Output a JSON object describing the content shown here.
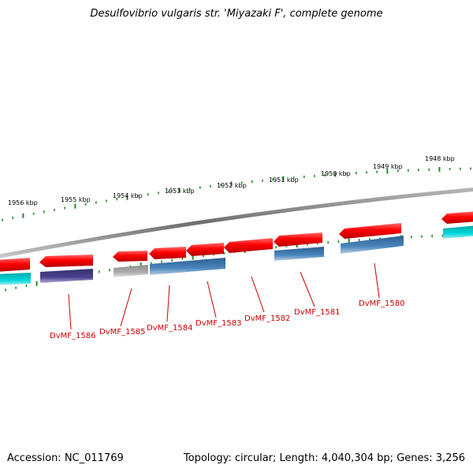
{
  "title": "Desulfovibrio vulgaris str. 'Miyazaki F', complete genome",
  "footer": {
    "accession": "Accession: NC_011769",
    "summary": "Topology: circular; Length: 4,040,304 bp; Genes: 3,256"
  },
  "scale_labels": [
    "1956 kbp",
    "1955 kbp",
    "1954 kbp",
    "1953 kbp",
    "1952 kbp",
    "1951 kbp",
    "1950 kbp",
    "1949 kbp",
    "1948 kbp"
  ],
  "gene_labels": [
    "DvMF_1586",
    "DvMF_1585",
    "DvMF_1584",
    "DvMF_1583",
    "DvMF_1582",
    "DvMF_1581",
    "DvMF_1580"
  ],
  "colors": {
    "forward": "#ff0000",
    "reverse_blue": "#4682b4",
    "reverse_purple": "#483d8b",
    "reverse_gray": "#a9a9a9",
    "cyan": "#00ced1",
    "tick": "#228b22",
    "label": "#cc0000",
    "backbone": "#808080"
  }
}
